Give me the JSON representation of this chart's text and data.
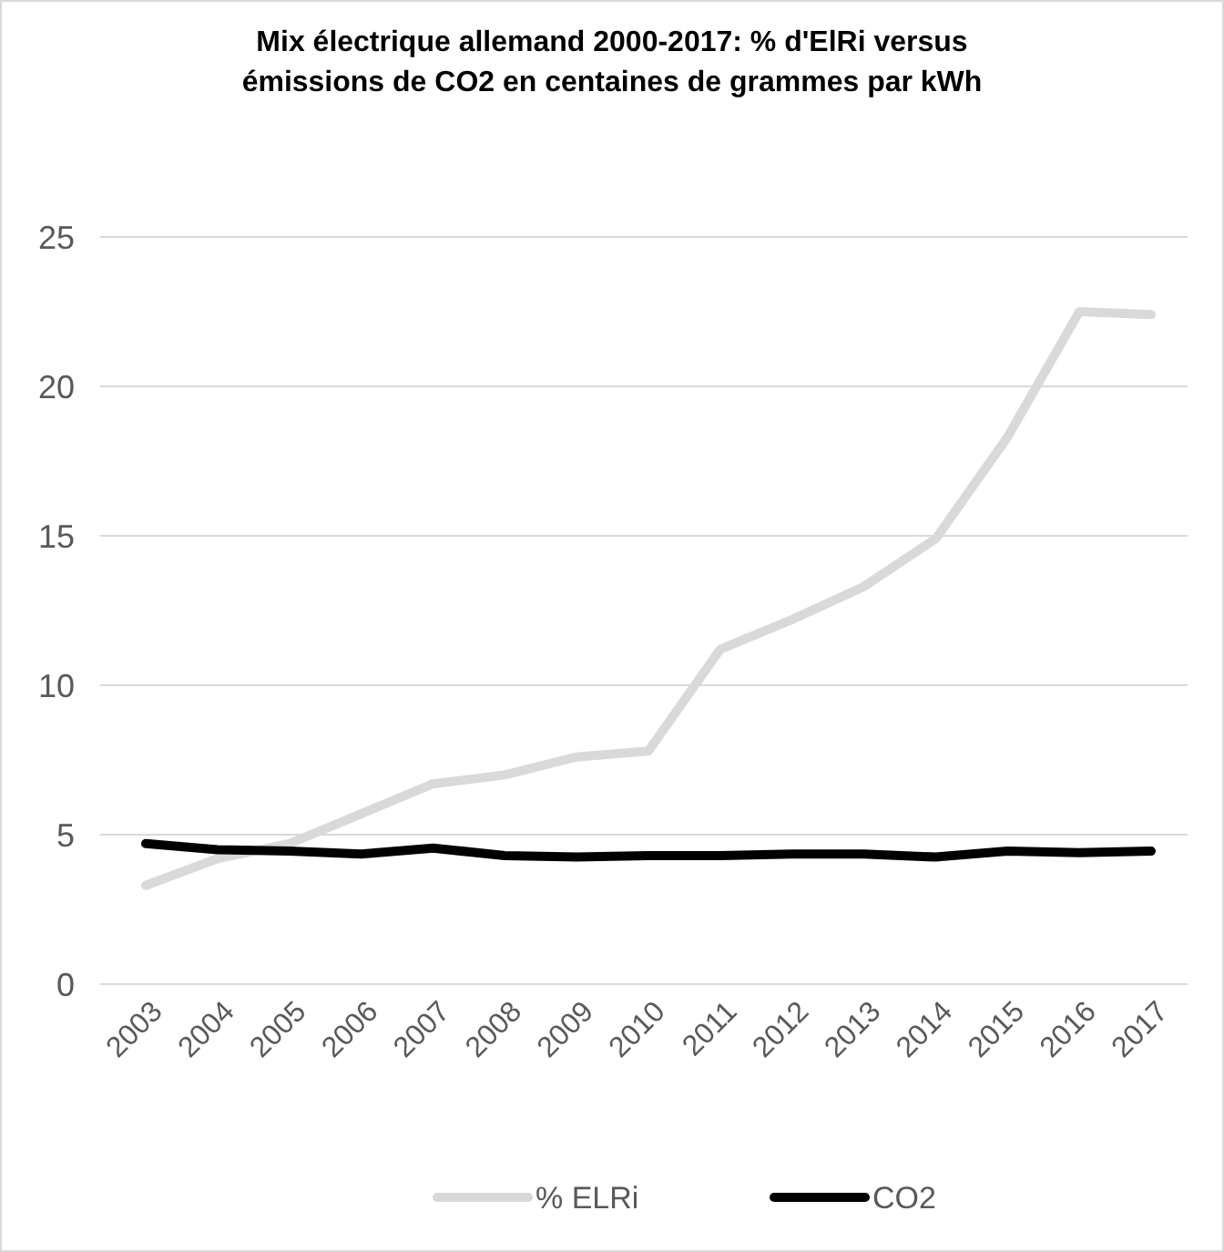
{
  "chart_data": {
    "type": "line",
    "title": "Mix électrique allemand 2000-2017: % d'ElRi  versus\némissions de CO2  en centaines de grammes par kWh",
    "categories": [
      "2003",
      "2004",
      "2005",
      "2006",
      "2007",
      "2008",
      "2009",
      "2010",
      "2011",
      "2012",
      "2013",
      "2014",
      "2015",
      "2016",
      "2017"
    ],
    "series": [
      {
        "name": "% ELRi",
        "color": "#d9d9d9",
        "values": [
          3.3,
          4.2,
          4.7,
          5.7,
          6.7,
          7.0,
          7.6,
          7.8,
          11.2,
          12.2,
          13.3,
          14.9,
          18.3,
          22.5,
          22.4
        ]
      },
      {
        "name": "CO2",
        "color": "#000000",
        "values": [
          4.7,
          4.5,
          4.45,
          4.35,
          4.55,
          4.3,
          4.25,
          4.3,
          4.3,
          4.35,
          4.35,
          4.25,
          4.45,
          4.4,
          4.45
        ]
      }
    ],
    "ylim": [
      0,
      25
    ],
    "yticks": [
      0,
      5,
      10,
      15,
      20,
      25
    ],
    "grid": "y",
    "legend": "bottom",
    "marker": "none",
    "line_style": "solid"
  }
}
